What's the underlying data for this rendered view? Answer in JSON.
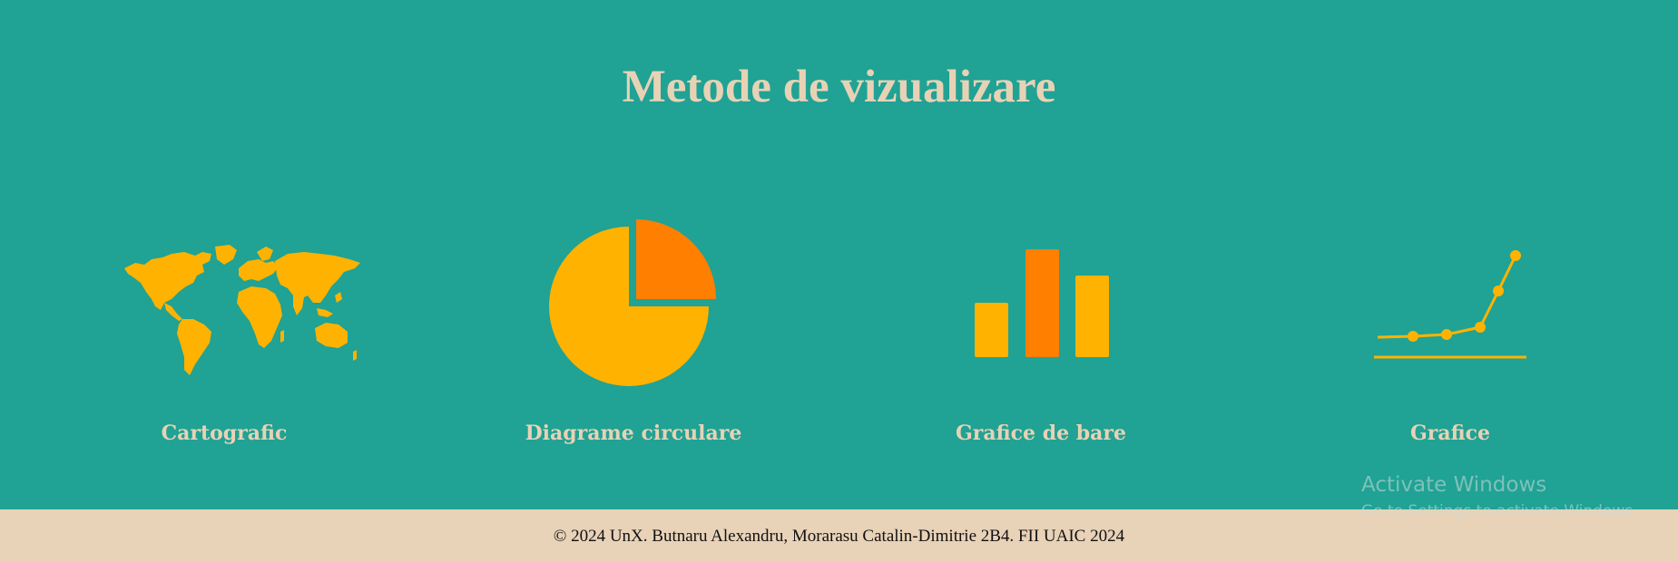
{
  "colors": {
    "background": "#20a294",
    "title": "#e8d2b6",
    "icon_primary": "#ffb300",
    "icon_accent": "#ff7f00",
    "footer_bg": "#e8d2b8"
  },
  "main": {
    "title": "Metode de vizualizare",
    "cards": [
      {
        "label": "Cartografic",
        "icon": "world-map-icon"
      },
      {
        "label": "Diagrame circulare",
        "icon": "pie-chart-icon"
      },
      {
        "label": "Grafice de bare",
        "icon": "bar-chart-icon"
      },
      {
        "label": "Grafice",
        "icon": "line-chart-icon"
      }
    ]
  },
  "footer": {
    "text": "© 2024 UnX. Butnaru Alexandru, Morarasu Catalin-Dimitrie 2B4. FII UAIC 2024"
  },
  "watermark": {
    "title": "Activate Windows",
    "subtitle": "Go to Settings to activate Windows."
  }
}
